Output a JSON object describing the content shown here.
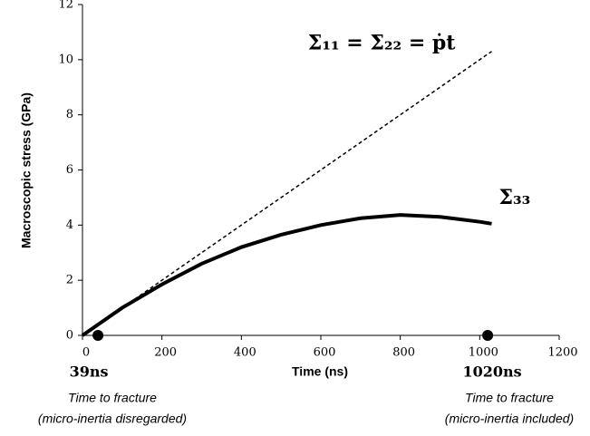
{
  "chart_data": {
    "type": "line",
    "x_label": "Time (ns)",
    "y_label": "Macroscopic stress (GPa)",
    "xlim": [
      0,
      1200
    ],
    "ylim": [
      0,
      12
    ],
    "xticks": [
      0,
      200,
      400,
      600,
      800,
      1000,
      1200
    ],
    "yticks": [
      0,
      2,
      4,
      6,
      8,
      10,
      12
    ],
    "series": [
      {
        "name": "Σ₁₁ = Σ₂₂ = ṗt",
        "color": "#000000",
        "dashed": true,
        "x": [
          0,
          1030
        ],
        "values": [
          0,
          10.3
        ]
      },
      {
        "name": "Σ₃₃",
        "color": "#000000",
        "dashed": false,
        "x": [
          0,
          100,
          200,
          300,
          400,
          500,
          600,
          700,
          800,
          900,
          1000,
          1030
        ],
        "values": [
          0,
          1.0,
          1.85,
          2.6,
          3.2,
          3.65,
          4.0,
          4.25,
          4.37,
          4.3,
          4.12,
          4.05
        ]
      }
    ],
    "markers": [
      {
        "x": 39,
        "label": "39ns",
        "caption": [
          "Time to fracture",
          "(micro-inertia disregarded)"
        ]
      },
      {
        "x": 1020,
        "label": "1020ns",
        "caption": [
          "Time to fracture",
          "(micro-inertia included)"
        ]
      }
    ]
  }
}
